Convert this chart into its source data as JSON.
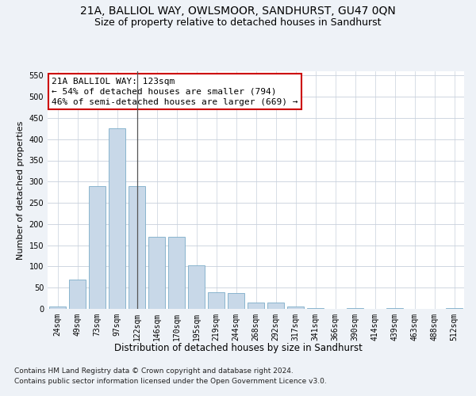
{
  "title1": "21A, BALLIOL WAY, OWLSMOOR, SANDHURST, GU47 0QN",
  "title2": "Size of property relative to detached houses in Sandhurst",
  "xlabel": "Distribution of detached houses by size in Sandhurst",
  "ylabel": "Number of detached properties",
  "categories": [
    "24sqm",
    "49sqm",
    "73sqm",
    "97sqm",
    "122sqm",
    "146sqm",
    "170sqm",
    "195sqm",
    "219sqm",
    "244sqm",
    "268sqm",
    "292sqm",
    "317sqm",
    "341sqm",
    "366sqm",
    "390sqm",
    "414sqm",
    "439sqm",
    "463sqm",
    "488sqm",
    "512sqm"
  ],
  "values": [
    5,
    70,
    290,
    425,
    290,
    170,
    170,
    103,
    40,
    37,
    15,
    15,
    5,
    2,
    0,
    2,
    0,
    2,
    0,
    0,
    2
  ],
  "bar_color": "#c8d8e8",
  "bar_edge_color": "#7bacc8",
  "highlight_index": 4,
  "highlight_line_color": "#555555",
  "ylim": [
    0,
    560
  ],
  "yticks": [
    0,
    50,
    100,
    150,
    200,
    250,
    300,
    350,
    400,
    450,
    500,
    550
  ],
  "annotation_box_text": "21A BALLIOL WAY: 123sqm\n← 54% of detached houses are smaller (794)\n46% of semi-detached houses are larger (669) →",
  "annotation_box_color": "#ffffff",
  "annotation_box_edge_color": "#cc0000",
  "footer1": "Contains HM Land Registry data © Crown copyright and database right 2024.",
  "footer2": "Contains public sector information licensed under the Open Government Licence v3.0.",
  "bg_color": "#eef2f7",
  "plot_bg_color": "#ffffff",
  "grid_color": "#c8d0dc",
  "title1_fontsize": 10,
  "title2_fontsize": 9,
  "xlabel_fontsize": 8.5,
  "ylabel_fontsize": 8,
  "tick_fontsize": 7,
  "annotation_fontsize": 8,
  "footer_fontsize": 6.5
}
